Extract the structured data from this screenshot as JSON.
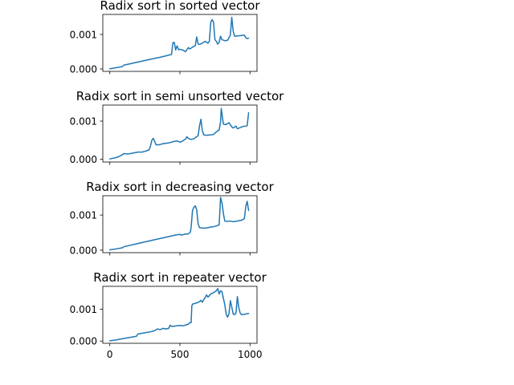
{
  "chart_data": [
    {
      "type": "line",
      "title": "Radix sort in sorted vector",
      "xlim": [
        -50,
        1050
      ],
      "ylim": [
        -7e-05,
        0.00158
      ],
      "xticks": [
        0,
        500,
        1000
      ],
      "yticks": [
        0.0,
        0.001
      ],
      "ytick_labels": [
        "0.000",
        "0.001"
      ],
      "show_xtick_labels": false,
      "grid": false,
      "color": "#1f77b4",
      "points": [
        [
          0,
          5e-06
        ],
        [
          50,
          4e-05
        ],
        [
          90,
          7e-05
        ],
        [
          100,
          0.00011
        ],
        [
          200,
          0.0002
        ],
        [
          300,
          0.00029
        ],
        [
          360,
          0.00034
        ],
        [
          400,
          0.00038
        ],
        [
          440,
          0.00042
        ],
        [
          450,
          0.00076
        ],
        [
          460,
          0.00077
        ],
        [
          470,
          0.00055
        ],
        [
          480,
          0.00067
        ],
        [
          490,
          0.00056
        ],
        [
          500,
          0.00057
        ],
        [
          520,
          0.00055
        ],
        [
          540,
          0.0005
        ],
        [
          560,
          0.00062
        ],
        [
          570,
          0.00058
        ],
        [
          590,
          0.00063
        ],
        [
          610,
          0.00068
        ],
        [
          620,
          0.00093
        ],
        [
          630,
          0.00072
        ],
        [
          640,
          0.00071
        ],
        [
          660,
          0.00075
        ],
        [
          680,
          0.0008
        ],
        [
          700,
          0.00075
        ],
        [
          710,
          0.0008
        ],
        [
          720,
          0.00135
        ],
        [
          730,
          0.00143
        ],
        [
          740,
          0.00135
        ],
        [
          750,
          0.00085
        ],
        [
          760,
          0.0008
        ],
        [
          770,
          0.00072
        ],
        [
          780,
          0.00078
        ],
        [
          790,
          0.00095
        ],
        [
          800,
          0.00085
        ],
        [
          820,
          0.00082
        ],
        [
          840,
          0.00083
        ],
        [
          860,
          0.00098
        ],
        [
          870,
          0.0015
        ],
        [
          880,
          0.0011
        ],
        [
          890,
          0.00095
        ],
        [
          920,
          0.00096
        ],
        [
          940,
          0.00097
        ],
        [
          960,
          0.00098
        ],
        [
          970,
          0.00091
        ],
        [
          980,
          0.00088
        ],
        [
          990,
          0.00089
        ]
      ]
    },
    {
      "type": "line",
      "title": "Radix sort in semi unsorted vector",
      "xlim": [
        -50,
        1050
      ],
      "ylim": [
        -7e-05,
        0.00142
      ],
      "xticks": [
        0,
        500,
        1000
      ],
      "yticks": [
        0.0,
        0.001
      ],
      "ytick_labels": [
        "0.000",
        "0.001"
      ],
      "show_xtick_labels": false,
      "grid": false,
      "color": "#1f77b4",
      "points": [
        [
          0,
          1e-05
        ],
        [
          50,
          5e-05
        ],
        [
          80,
          0.0001
        ],
        [
          100,
          0.00015
        ],
        [
          130,
          0.00014
        ],
        [
          160,
          0.00016
        ],
        [
          200,
          0.00019
        ],
        [
          230,
          0.00019
        ],
        [
          260,
          0.00022
        ],
        [
          280,
          0.00025
        ],
        [
          290,
          0.00035
        ],
        [
          300,
          0.0005
        ],
        [
          310,
          0.00055
        ],
        [
          320,
          0.00047
        ],
        [
          330,
          0.00038
        ],
        [
          350,
          0.00038
        ],
        [
          380,
          0.00041
        ],
        [
          420,
          0.00043
        ],
        [
          460,
          0.00047
        ],
        [
          480,
          0.00048
        ],
        [
          500,
          0.00045
        ],
        [
          520,
          0.00048
        ],
        [
          540,
          0.00053
        ],
        [
          550,
          0.00059
        ],
        [
          560,
          0.00055
        ],
        [
          580,
          0.00052
        ],
        [
          600,
          0.00054
        ],
        [
          630,
          0.00062
        ],
        [
          640,
          0.00088
        ],
        [
          650,
          0.00105
        ],
        [
          660,
          0.00075
        ],
        [
          670,
          0.00064
        ],
        [
          690,
          0.00063
        ],
        [
          720,
          0.00064
        ],
        [
          740,
          0.00065
        ],
        [
          760,
          0.00072
        ],
        [
          780,
          0.00077
        ],
        [
          790,
          0.00098
        ],
        [
          795,
          0.00133
        ],
        [
          800,
          0.0012
        ],
        [
          810,
          0.00092
        ],
        [
          830,
          0.00091
        ],
        [
          850,
          0.00096
        ],
        [
          870,
          0.00085
        ],
        [
          880,
          0.00082
        ],
        [
          900,
          0.00087
        ],
        [
          910,
          0.0008
        ],
        [
          930,
          0.00083
        ],
        [
          950,
          0.00086
        ],
        [
          970,
          0.00087
        ],
        [
          980,
          0.00088
        ],
        [
          990,
          0.00122
        ]
      ]
    },
    {
      "type": "line",
      "title": "Radix sort in decreasing vector",
      "xlim": [
        -50,
        1050
      ],
      "ylim": [
        -7e-05,
        0.00155
      ],
      "xticks": [
        0,
        500,
        1000
      ],
      "yticks": [
        0.0,
        0.001
      ],
      "ytick_labels": [
        "0.000",
        "0.001"
      ],
      "show_xtick_labels": false,
      "grid": false,
      "color": "#1f77b4",
      "points": [
        [
          0,
          1e-05
        ],
        [
          50,
          4e-05
        ],
        [
          90,
          7e-05
        ],
        [
          100,
          0.0001
        ],
        [
          200,
          0.00019
        ],
        [
          300,
          0.00028
        ],
        [
          400,
          0.00037
        ],
        [
          480,
          0.00044
        ],
        [
          500,
          0.00045
        ],
        [
          510,
          0.00043
        ],
        [
          540,
          0.00046
        ],
        [
          560,
          0.00046
        ],
        [
          575,
          0.00052
        ],
        [
          580,
          0.00065
        ],
        [
          590,
          0.00113
        ],
        [
          600,
          0.00122
        ],
        [
          610,
          0.00126
        ],
        [
          620,
          0.00115
        ],
        [
          630,
          0.00075
        ],
        [
          640,
          0.00064
        ],
        [
          660,
          0.00063
        ],
        [
          680,
          0.00063
        ],
        [
          700,
          0.00064
        ],
        [
          720,
          0.00066
        ],
        [
          740,
          0.00067
        ],
        [
          760,
          0.00069
        ],
        [
          780,
          0.00072
        ],
        [
          790,
          0.0015
        ],
        [
          800,
          0.00135
        ],
        [
          810,
          0.00105
        ],
        [
          820,
          0.00083
        ],
        [
          840,
          0.00082
        ],
        [
          860,
          0.00083
        ],
        [
          880,
          0.00081
        ],
        [
          900,
          0.00082
        ],
        [
          920,
          0.00084
        ],
        [
          940,
          0.00085
        ],
        [
          960,
          0.0009
        ],
        [
          970,
          0.00125
        ],
        [
          980,
          0.00139
        ],
        [
          990,
          0.00113
        ]
      ]
    },
    {
      "type": "line",
      "title": "Radix sort in repeater vector",
      "xlim": [
        -50,
        1050
      ],
      "ylim": [
        -7e-05,
        0.00172
      ],
      "xticks": [
        0,
        500,
        1000
      ],
      "yticks": [
        0.0,
        0.001
      ],
      "ytick_labels": [
        "0.000",
        "0.001"
      ],
      "xtick_labels": [
        "0",
        "500",
        "1000"
      ],
      "show_xtick_labels": true,
      "grid": false,
      "color": "#1f77b4",
      "points": [
        [
          0,
          1e-05
        ],
        [
          50,
          4e-05
        ],
        [
          100,
          8e-05
        ],
        [
          150,
          0.00012
        ],
        [
          190,
          0.00015
        ],
        [
          200,
          0.00022
        ],
        [
          250,
          0.00026
        ],
        [
          300,
          0.0003
        ],
        [
          320,
          0.00033
        ],
        [
          340,
          0.00038
        ],
        [
          360,
          0.00036
        ],
        [
          380,
          0.0004
        ],
        [
          400,
          0.00038
        ],
        [
          420,
          0.0004
        ],
        [
          430,
          0.0005
        ],
        [
          440,
          0.00046
        ],
        [
          460,
          0.00047
        ],
        [
          480,
          0.00048
        ],
        [
          500,
          0.00049
        ],
        [
          520,
          0.00048
        ],
        [
          540,
          0.0005
        ],
        [
          560,
          0.00053
        ],
        [
          570,
          0.00058
        ],
        [
          580,
          0.00058
        ],
        [
          585,
          0.0011
        ],
        [
          590,
          0.00116
        ],
        [
          620,
          0.0012
        ],
        [
          640,
          0.00124
        ],
        [
          650,
          0.00128
        ],
        [
          660,
          0.00122
        ],
        [
          670,
          0.0013
        ],
        [
          680,
          0.00137
        ],
        [
          690,
          0.00145
        ],
        [
          700,
          0.00138
        ],
        [
          720,
          0.00148
        ],
        [
          740,
          0.00152
        ],
        [
          760,
          0.00158
        ],
        [
          770,
          0.00165
        ],
        [
          780,
          0.00148
        ],
        [
          790,
          0.00158
        ],
        [
          800,
          0.00155
        ],
        [
          810,
          0.00135
        ],
        [
          820,
          0.00115
        ],
        [
          830,
          0.00085
        ],
        [
          840,
          0.00075
        ],
        [
          850,
          0.00085
        ],
        [
          860,
          0.00127
        ],
        [
          870,
          0.00107
        ],
        [
          880,
          0.00085
        ],
        [
          890,
          0.00083
        ],
        [
          900,
          0.00088
        ],
        [
          910,
          0.0014
        ],
        [
          920,
          0.00105
        ],
        [
          930,
          0.00088
        ],
        [
          940,
          0.00083
        ],
        [
          960,
          0.00084
        ],
        [
          980,
          0.00086
        ],
        [
          990,
          0.00087
        ]
      ]
    }
  ]
}
